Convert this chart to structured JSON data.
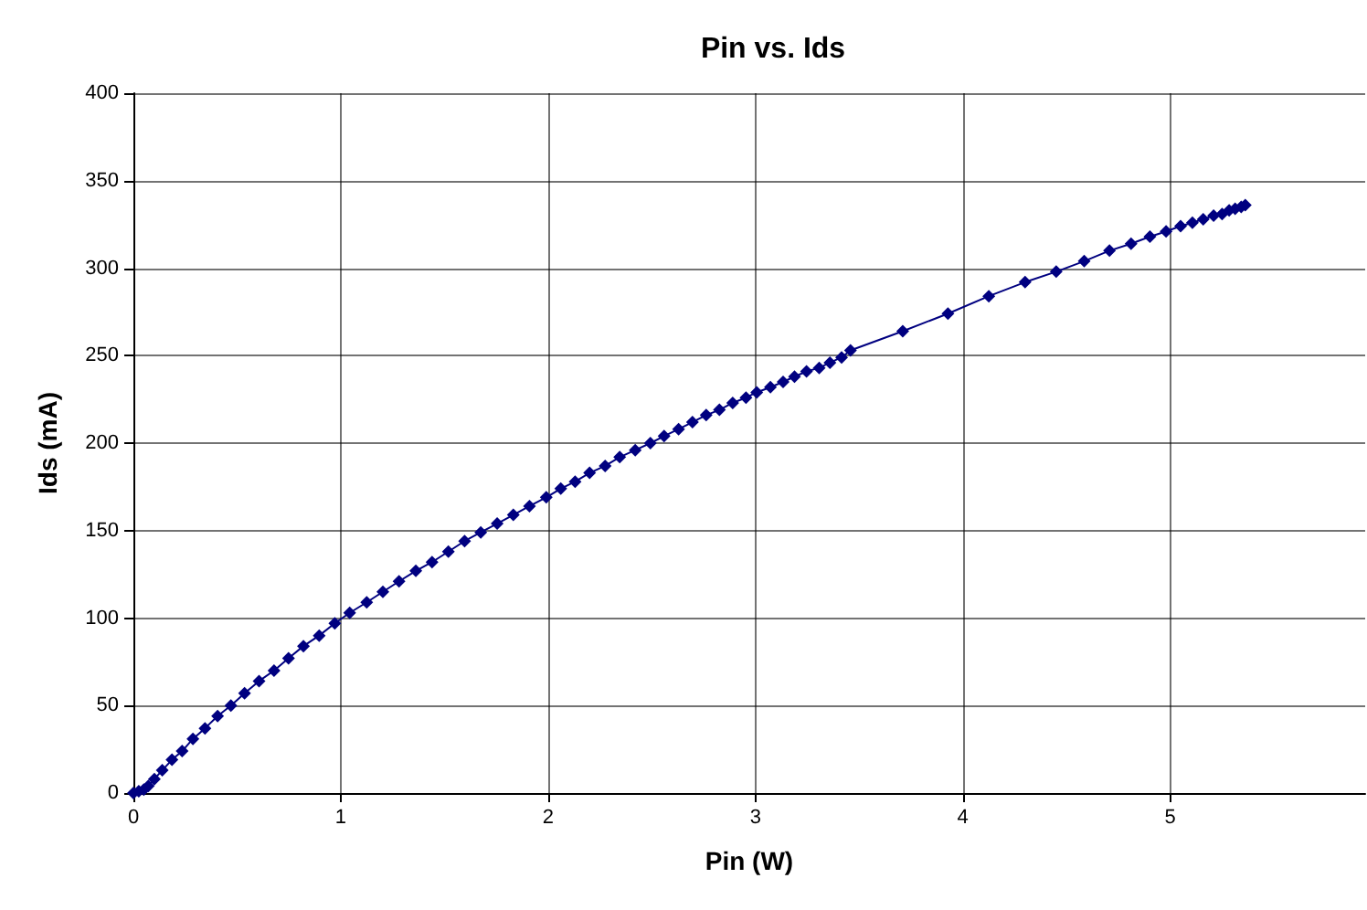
{
  "chart_data": {
    "type": "line",
    "title": "Pin vs. Ids",
    "xlabel": "Pin (W)",
    "ylabel": "Ids (mA)",
    "xlim": [
      0,
      5.94
    ],
    "xticks": [
      0,
      1,
      2,
      3,
      4,
      5
    ],
    "ylim": [
      0,
      400
    ],
    "yticks": [
      0,
      50,
      100,
      150,
      200,
      250,
      300,
      350,
      400
    ],
    "grid": true,
    "marker": "diamond",
    "line_style": "solid",
    "series": [
      {
        "color": "#000080",
        "x": [
          0,
          0.026,
          0.05,
          0.072,
          0.101,
          0.139,
          0.186,
          0.235,
          0.287,
          0.345,
          0.406,
          0.47,
          0.536,
          0.606,
          0.678,
          0.748,
          0.82,
          0.896,
          0.971,
          1.043,
          1.125,
          1.203,
          1.281,
          1.362,
          1.44,
          1.519,
          1.597,
          1.675,
          1.754,
          1.832,
          1.91,
          1.991,
          2.061,
          2.13,
          2.2,
          2.275,
          2.345,
          2.42,
          2.493,
          2.559,
          2.629,
          2.696,
          2.762,
          2.826,
          2.89,
          2.954,
          3.006,
          3.072,
          3.133,
          3.188,
          3.246,
          3.307,
          3.359,
          3.415,
          3.458,
          3.71,
          3.928,
          4.125,
          4.3,
          4.45,
          4.585,
          4.707,
          4.811,
          4.902,
          4.98,
          5.05,
          5.107,
          5.159,
          5.209,
          5.25,
          5.284,
          5.313,
          5.342,
          5.362
        ],
        "values": [
          0,
          1,
          2,
          4,
          8,
          13,
          19,
          24,
          31,
          37,
          44,
          50,
          57,
          64,
          70,
          77,
          84,
          90,
          97,
          103,
          109,
          115,
          121,
          127,
          132,
          138,
          144,
          149,
          154,
          159,
          164,
          169,
          174,
          178,
          183,
          187,
          192,
          196,
          200,
          204,
          208,
          212,
          216,
          219,
          223,
          226,
          229,
          232,
          235,
          238,
          241,
          243,
          246,
          249,
          253,
          264,
          274,
          284,
          292,
          298,
          304,
          310,
          314,
          318,
          321,
          324,
          326,
          328,
          330,
          331,
          333,
          334,
          335,
          336
        ]
      }
    ]
  }
}
